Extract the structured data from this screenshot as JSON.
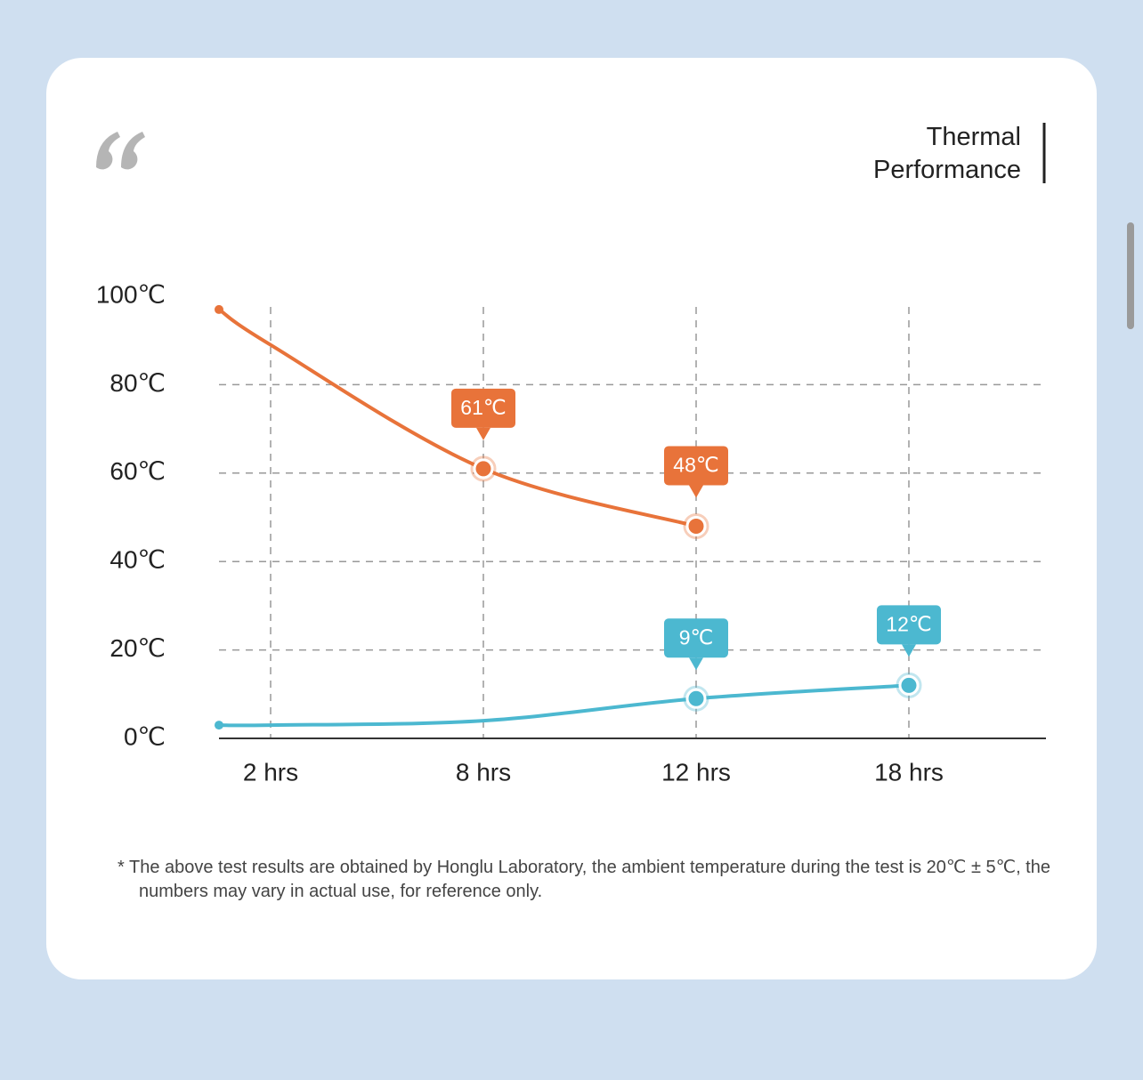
{
  "chart_data": {
    "type": "line",
    "title": "Thermal Performance",
    "categories": [
      null,
      "2 hrs",
      "8 hrs",
      "12 hrs",
      "18 hrs"
    ],
    "series": [
      {
        "color": "#e8733a",
        "values": [
          97,
          89,
          61,
          48,
          null
        ],
        "value_labels": [
          null,
          null,
          "61℃",
          "48℃",
          null
        ]
      },
      {
        "color": "#4cb8d0",
        "values": [
          3,
          3,
          4,
          9,
          12
        ],
        "value_labels": [
          null,
          null,
          null,
          "9℃",
          "12℃"
        ]
      }
    ],
    "ylim": [
      0,
      100
    ],
    "yticks": [
      {
        "value": 0,
        "label": "0℃"
      },
      {
        "value": 20,
        "label": "20℃"
      },
      {
        "value": 40,
        "label": "40℃"
      },
      {
        "value": 60,
        "label": "60℃"
      },
      {
        "value": 80,
        "label": "80℃"
      },
      {
        "value": 100,
        "label": "100℃"
      }
    ],
    "grid": true,
    "note": "* The above test results are obtained by Honglu Laboratory, the ambient temperature during the test is 20℃ ± 5℃, the numbers may vary in actual use, for reference only."
  }
}
